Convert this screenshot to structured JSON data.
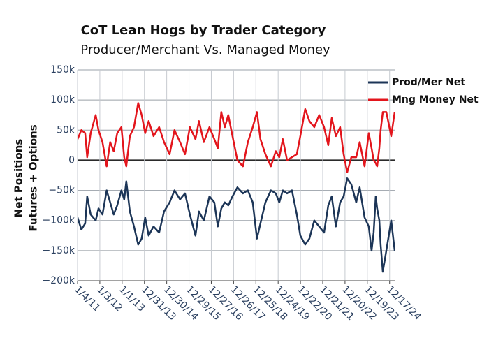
{
  "chart_data": {
    "type": "line",
    "title": "CoT Lean Hogs by Trader Category",
    "subtitle": "Producer/Merchant Vs. Managed Money",
    "ylabel": [
      "Net Positions",
      "Futures + Options"
    ],
    "grid": true,
    "legend": "top-right",
    "x": [
      "2011-01-04",
      "2011-03-08",
      "2011-05-08",
      "2011-06-10",
      "2011-08-06",
      "2011-10-28",
      "2011-12-12",
      "2012-02-15",
      "2012-04-24",
      "2012-06-20",
      "2012-08-17",
      "2012-10-13",
      "2012-12-20",
      "2013-02-04",
      "2013-03-10",
      "2013-05-07",
      "2013-07-14",
      "2013-09-20",
      "2013-11-16",
      "2014-01-12",
      "2014-03-10",
      "2014-05-29",
      "2014-08-28",
      "2014-11-16",
      "2015-02-15",
      "2015-05-06",
      "2015-08-05",
      "2015-10-24",
      "2016-01-12",
      "2016-04-13",
      "2016-06-09",
      "2016-08-28",
      "2016-11-27",
      "2017-02-15",
      "2017-04-13",
      "2017-06-09",
      "2017-08-05",
      "2017-10-01",
      "2017-12-08",
      "2018-02-26",
      "2018-05-28",
      "2018-08-16",
      "2018-11-04",
      "2019-01-12",
      "2019-03-10",
      "2019-05-29",
      "2019-08-28",
      "2019-11-16",
      "2020-01-12",
      "2020-03-10",
      "2020-05-17",
      "2020-08-05",
      "2020-10-24",
      "2020-12-20",
      "2021-03-10",
      "2021-05-17",
      "2021-08-05",
      "2021-10-24",
      "2022-01-12",
      "2022-03-21",
      "2022-05-17",
      "2022-07-24",
      "2022-10-01",
      "2022-11-27",
      "2023-01-24",
      "2023-04-02",
      "2023-06-20",
      "2023-08-17",
      "2023-11-04",
      "2024-01-12",
      "2024-02-26",
      "2024-04-01",
      "2024-05-05",
      "2024-05-28",
      "2024-07-02",
      "2024-07-24",
      "2024-08-28",
      "2024-10-24",
      "2025-01-12",
      "2025-03-10"
    ],
    "series": [
      {
        "name": "Prod/Mer Net",
        "color": "#1c3557",
        "values": [
          -95000,
          -115000,
          -105000,
          -60000,
          -90000,
          -100000,
          -80000,
          -90000,
          -50000,
          -70000,
          -90000,
          -75000,
          -50000,
          -65000,
          -35000,
          -85000,
          -110000,
          -140000,
          -130000,
          -95000,
          -125000,
          -110000,
          -120000,
          -85000,
          -70000,
          -50000,
          -65000,
          -55000,
          -90000,
          -125000,
          -85000,
          -100000,
          -60000,
          -70000,
          -110000,
          -80000,
          -70000,
          -75000,
          -60000,
          -45000,
          -55000,
          -50000,
          -70000,
          -130000,
          -105000,
          -70000,
          -50000,
          -55000,
          -70000,
          -50000,
          -55000,
          -50000,
          -90000,
          -125000,
          -140000,
          -130000,
          -100000,
          -110000,
          -120000,
          -75000,
          -60000,
          -110000,
          -70000,
          -60000,
          -30000,
          -40000,
          -70000,
          -45000,
          -95000,
          -110000,
          -150000,
          -120000,
          -60000,
          -80000,
          -100000,
          -140000,
          -185000,
          -150000,
          -100000,
          -150000
        ]
      },
      {
        "name": "Mng Money Net",
        "color": "#e3151c",
        "values": [
          35000,
          50000,
          45000,
          5000,
          45000,
          75000,
          50000,
          30000,
          -10000,
          30000,
          15000,
          45000,
          55000,
          5000,
          -10000,
          40000,
          55000,
          95000,
          75000,
          45000,
          65000,
          40000,
          55000,
          30000,
          10000,
          50000,
          30000,
          10000,
          55000,
          35000,
          65000,
          30000,
          55000,
          35000,
          20000,
          80000,
          55000,
          75000,
          40000,
          0,
          -10000,
          30000,
          55000,
          80000,
          35000,
          10000,
          -10000,
          15000,
          5000,
          35000,
          0,
          5000,
          10000,
          40000,
          85000,
          65000,
          55000,
          75000,
          55000,
          25000,
          70000,
          40000,
          55000,
          10000,
          -20000,
          5000,
          5000,
          30000,
          -10000,
          45000,
          20000,
          0,
          -5000,
          -10000,
          20000,
          50000,
          80000,
          80000,
          40000,
          80000
        ]
      }
    ],
    "xlim": [
      "2011-01-04",
      "2025-03-10"
    ],
    "xticks": [
      {
        "value": "2011-01-04",
        "label": "1/4/11"
      },
      {
        "value": "2012-01-03",
        "label": "1/3/12"
      },
      {
        "value": "2013-01-01",
        "label": "1/1/13"
      },
      {
        "value": "2013-12-31",
        "label": "12/31/13"
      },
      {
        "value": "2014-12-30",
        "label": "12/30/14"
      },
      {
        "value": "2015-12-29",
        "label": "12/29/15"
      },
      {
        "value": "2016-12-27",
        "label": "12/27/16"
      },
      {
        "value": "2017-12-26",
        "label": "12/26/17"
      },
      {
        "value": "2018-12-25",
        "label": "12/25/18"
      },
      {
        "value": "2019-12-24",
        "label": "12/24/19"
      },
      {
        "value": "2020-12-22",
        "label": "12/22/20"
      },
      {
        "value": "2021-12-21",
        "label": "12/21/21"
      },
      {
        "value": "2022-12-20",
        "label": "12/20/22"
      },
      {
        "value": "2023-12-19",
        "label": "12/19/23"
      },
      {
        "value": "2024-12-17",
        "label": "12/17/24"
      }
    ],
    "ylim": [
      -200000,
      150000
    ],
    "yticks": [
      {
        "value": -200000,
        "label": "−200k"
      },
      {
        "value": -150000,
        "label": "−150k"
      },
      {
        "value": -100000,
        "label": "−100k"
      },
      {
        "value": -50000,
        "label": "−50k"
      },
      0,
      {
        "value": 50000,
        "label": "50k"
      },
      {
        "value": 100000,
        "label": "100k"
      },
      {
        "value": 150000,
        "label": "150k"
      }
    ]
  }
}
